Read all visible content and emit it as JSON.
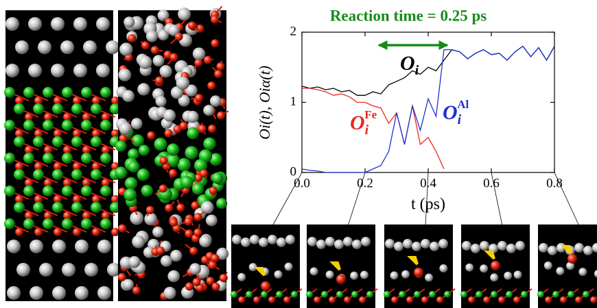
{
  "chart_data": {
    "type": "line",
    "title": "Reaction time = 0.25 ps",
    "xlabel": "t (ps)",
    "ylabel": "Oi(t), Oiα(t)",
    "x": [
      0,
      0.025,
      0.05,
      0.075,
      0.1,
      0.125,
      0.15,
      0.175,
      0.2,
      0.225,
      0.25,
      0.275,
      0.3,
      0.325,
      0.35,
      0.375,
      0.4,
      0.425,
      0.45,
      0.475,
      0.5,
      0.525,
      0.55,
      0.575,
      0.6,
      0.625,
      0.65,
      0.675,
      0.7,
      0.725,
      0.75,
      0.775,
      0.8
    ],
    "series": [
      {
        "symbol": "O",
        "subscript": "i",
        "color": "#000000",
        "values": [
          1.23,
          1.2,
          1.22,
          1.18,
          1.2,
          1.15,
          1.17,
          1.1,
          1.1,
          1.15,
          1.12,
          1.25,
          1.3,
          1.35,
          1.45,
          1.4,
          1.5,
          1.45,
          1.6,
          1.75,
          1.72,
          1.62,
          1.7,
          1.75,
          1.68,
          1.7,
          1.6,
          1.72,
          1.8,
          1.65,
          1.78,
          1.6,
          1.8
        ]
      },
      {
        "symbol": "O",
        "subscript": "i",
        "superscript": "Fe",
        "color": "#e8291c",
        "values": [
          1.2,
          1.2,
          1.18,
          1.15,
          1.1,
          1.12,
          1.08,
          1.0,
          1.0,
          0.95,
          0.92,
          0.7,
          0.85,
          0.4,
          0.95,
          0.4,
          0.5,
          0.3,
          0.05,
          null,
          null,
          null,
          null,
          null,
          null,
          null,
          null,
          null,
          null,
          null,
          null,
          null,
          null
        ]
      },
      {
        "symbol": "O",
        "subscript": "i",
        "superscript": "Al",
        "color": "#1f2fd0",
        "values": [
          0.05,
          0.03,
          0.02,
          0,
          0,
          0,
          0,
          0,
          0,
          0.05,
          0.1,
          0.3,
          0.85,
          0.4,
          0.95,
          0.6,
          1.05,
          0.8,
          1.75,
          1.75,
          1.72,
          1.62,
          1.7,
          1.75,
          1.68,
          1.7,
          1.6,
          1.72,
          1.8,
          1.65,
          1.78,
          1.6,
          1.8
        ]
      }
    ],
    "xlim": [
      0,
      0.8
    ],
    "xticks": [
      {
        "value": 0,
        "label": "0.0"
      },
      0.2,
      0.4,
      0.6,
      0.8
    ],
    "ylim": [
      0,
      2
    ],
    "yticks": [
      0,
      1,
      2
    ],
    "annotation_color": "#1a8a1a"
  }
}
